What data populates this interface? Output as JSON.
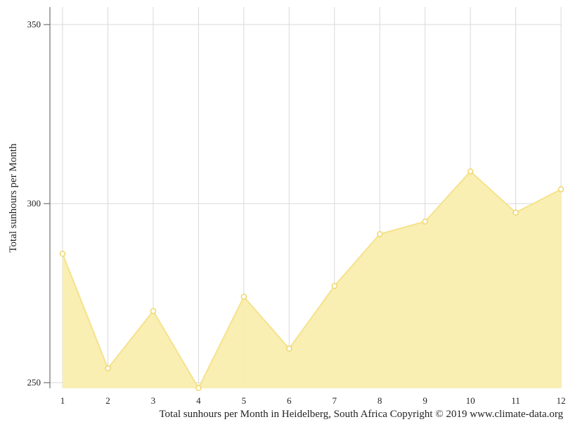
{
  "chart_data": {
    "type": "area",
    "x": [
      1,
      2,
      3,
      4,
      5,
      6,
      7,
      8,
      9,
      10,
      11,
      12
    ],
    "y": [
      286,
      254,
      270,
      248.5,
      274,
      259.5,
      277,
      291.5,
      295,
      309,
      297.5,
      304
    ],
    "ylabel": "Total sunhours per Month",
    "xlabel": "",
    "ylim": [
      250,
      350
    ],
    "yticks": [
      250,
      300,
      350
    ],
    "grid": true,
    "fill_color": "#f9eeaf",
    "line_color": "#f6e28c"
  },
  "caption": "Total sunhours per Month in Heidelberg, South Africa Copyright © 2019 www.climate-data.org"
}
